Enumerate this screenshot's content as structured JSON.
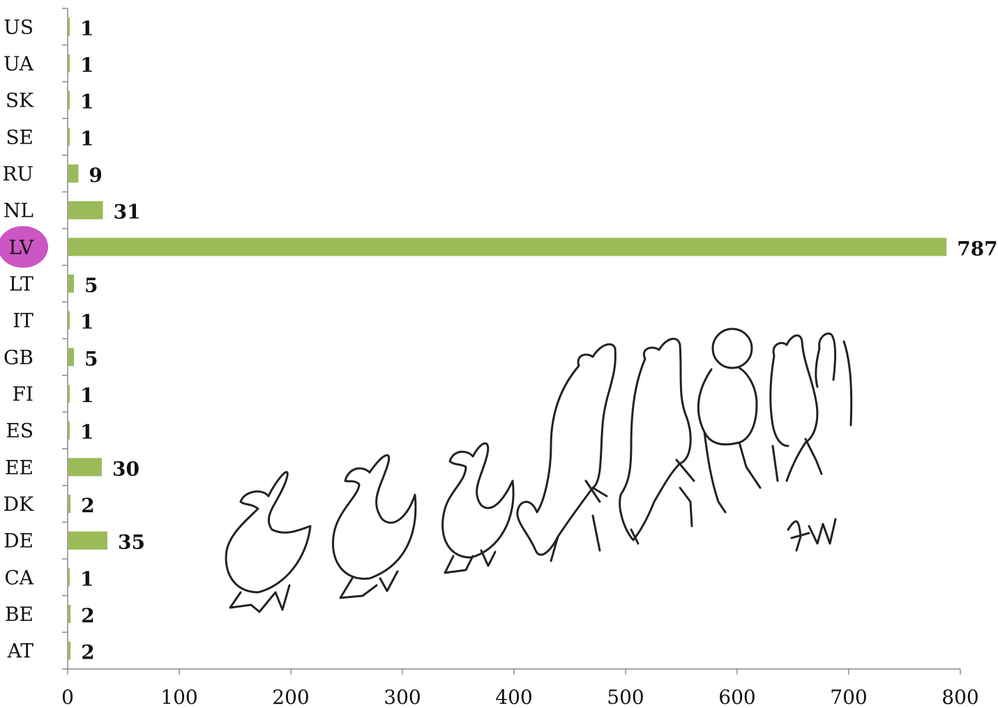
{
  "chart_data": {
    "type": "bar",
    "orientation": "horizontal",
    "categories": [
      "US",
      "UA",
      "SK",
      "SE",
      "RU",
      "NL",
      "LV",
      "LT",
      "IT",
      "GB",
      "FI",
      "ES",
      "EE",
      "DK",
      "DE",
      "CA",
      "BE",
      "AT"
    ],
    "values": [
      1,
      1,
      1,
      1,
      9,
      31,
      787,
      5,
      1,
      5,
      1,
      1,
      30,
      2,
      35,
      1,
      2,
      2
    ],
    "xlim": [
      0,
      800
    ],
    "x_ticks": [
      "0",
      "100",
      "200",
      "300",
      "400",
      "500",
      "600",
      "700",
      "800"
    ],
    "highlighted_category": "LV",
    "grid": false,
    "legend": "none",
    "colors": {
      "bar": "#9bbb59",
      "highlight": "#cc55c4",
      "axis": "#888888"
    }
  },
  "illustration": {
    "signature": "KV"
  }
}
